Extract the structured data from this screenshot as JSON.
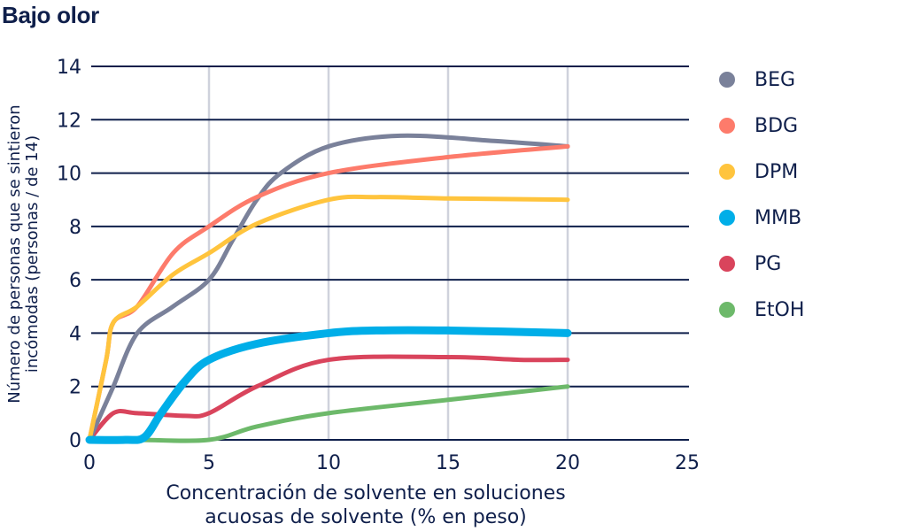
{
  "title": "Bajo olor",
  "chart_data": {
    "type": "line",
    "title": "Bajo olor",
    "xlabel": "Concentración de solvente en soluciones acuosas de solvente (% en peso)",
    "xlabel_lines": [
      "Concentración de solvente en soluciones",
      "acuosas de solvente (% en peso)"
    ],
    "ylabel": "Número de personas que se sintieron incómodas (personas / de 14)",
    "ylabel_lines": [
      "Número de personas que se sintieron",
      "incómodas (personas / de 14)"
    ],
    "xlim": [
      0,
      25
    ],
    "ylim": [
      0,
      14
    ],
    "xticks": [
      0,
      5,
      10,
      15,
      20,
      25
    ],
    "yticks": [
      0,
      2,
      4,
      6,
      8,
      10,
      12,
      14
    ],
    "grid": {
      "horizontal": true,
      "vertical": true
    },
    "legend_position": "right",
    "x": [
      0,
      1,
      2,
      5,
      10,
      20
    ],
    "series": [
      {
        "name": "BEG",
        "color": "#7a819a",
        "values": [
          0,
          2,
          4,
          6,
          11,
          11
        ],
        "points": [
          [
            0,
            0
          ],
          [
            0.5,
            1
          ],
          [
            1,
            2
          ],
          [
            2,
            4
          ],
          [
            3.5,
            5
          ],
          [
            5,
            6
          ],
          [
            6,
            7.5
          ],
          [
            7,
            9
          ],
          [
            8,
            10
          ],
          [
            10,
            11
          ],
          [
            13,
            11.4
          ],
          [
            17,
            11.2
          ],
          [
            20,
            11
          ]
        ]
      },
      {
        "name": "BDG",
        "color": "#fd7b6b",
        "values": [
          0,
          4.4,
          5,
          8,
          10,
          11
        ],
        "points": [
          [
            0,
            0
          ],
          [
            0.7,
            3
          ],
          [
            1,
            4.4
          ],
          [
            2,
            5
          ],
          [
            3.5,
            7
          ],
          [
            5,
            8
          ],
          [
            7,
            9.1
          ],
          [
            10,
            10
          ],
          [
            15,
            10.6
          ],
          [
            20,
            11
          ]
        ]
      },
      {
        "name": "DPM",
        "color": "#ffc43d",
        "values": [
          0,
          4.4,
          5,
          7,
          9,
          9
        ],
        "points": [
          [
            0,
            0
          ],
          [
            0.7,
            3
          ],
          [
            1,
            4.4
          ],
          [
            2,
            5
          ],
          [
            3.5,
            6.2
          ],
          [
            5,
            7
          ],
          [
            7,
            8.1
          ],
          [
            10,
            9
          ],
          [
            12,
            9.1
          ],
          [
            15,
            9.05
          ],
          [
            20,
            9
          ]
        ]
      },
      {
        "name": "MMB",
        "color": "#00aee8",
        "values": [
          0,
          0,
          0.1,
          3,
          4,
          4
        ],
        "points": [
          [
            0,
            0
          ],
          [
            1.5,
            0
          ],
          [
            2.3,
            0.1
          ],
          [
            3,
            1
          ],
          [
            4,
            2.2
          ],
          [
            5,
            3
          ],
          [
            7,
            3.6
          ],
          [
            10,
            4
          ],
          [
            12,
            4.1
          ],
          [
            15,
            4.1
          ],
          [
            20,
            4
          ]
        ]
      },
      {
        "name": "PG",
        "color": "#d9445c",
        "values": [
          0,
          1,
          1,
          1,
          3,
          3
        ],
        "points": [
          [
            0,
            0
          ],
          [
            1,
            1
          ],
          [
            2,
            1
          ],
          [
            4,
            0.9
          ],
          [
            5,
            1
          ],
          [
            7,
            2
          ],
          [
            10,
            3
          ],
          [
            15,
            3.1
          ],
          [
            18,
            3
          ],
          [
            20,
            3
          ]
        ]
      },
      {
        "name": "EtOH",
        "color": "#6db96a",
        "values": [
          0,
          0,
          0,
          0,
          1,
          2
        ],
        "points": [
          [
            0,
            0
          ],
          [
            2,
            0
          ],
          [
            5,
            0
          ],
          [
            7,
            0.5
          ],
          [
            10,
            1
          ],
          [
            15,
            1.5
          ],
          [
            20,
            2
          ]
        ]
      }
    ]
  },
  "legend": [
    {
      "label": "BEG",
      "color": "#7a819a"
    },
    {
      "label": "BDG",
      "color": "#fd7b6b"
    },
    {
      "label": "DPM",
      "color": "#ffc43d"
    },
    {
      "label": "MMB",
      "color": "#00aee8"
    },
    {
      "label": "PG",
      "color": "#d9445c"
    },
    {
      "label": "EtOH",
      "color": "#6db96a"
    }
  ]
}
